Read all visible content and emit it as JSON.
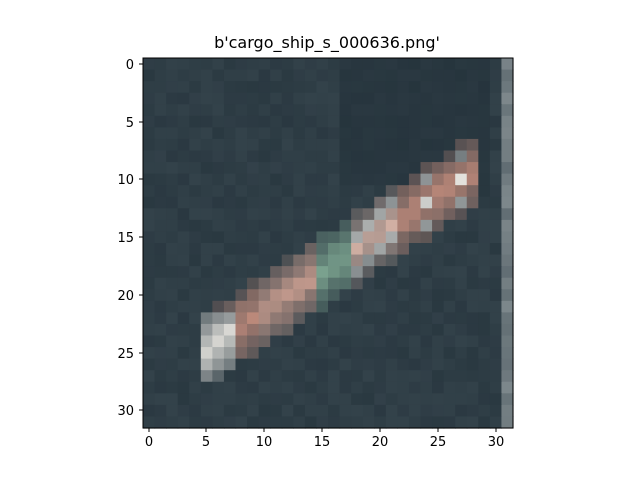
{
  "figure": {
    "title": "b'cargo_ship_s_000636.png'"
  },
  "image": {
    "grid_size": [
      32,
      32
    ],
    "content": "low-resolution satellite image tile",
    "colors": {
      "water": "#33424a",
      "water_dark": "#24323b",
      "hull_salmon": "#c9907f",
      "hull_white": "#e6e4df",
      "deck_green": "#7fa893",
      "edge_gray": "#8f989b"
    }
  },
  "axes": {
    "x_ticks": [
      "0",
      "5",
      "10",
      "15",
      "20",
      "25",
      "30"
    ],
    "y_ticks": [
      "0",
      "5",
      "10",
      "15",
      "20",
      "25",
      "30"
    ],
    "x_range": [
      -0.5,
      31.5
    ],
    "y_range": [
      -0.5,
      31.5
    ]
  }
}
